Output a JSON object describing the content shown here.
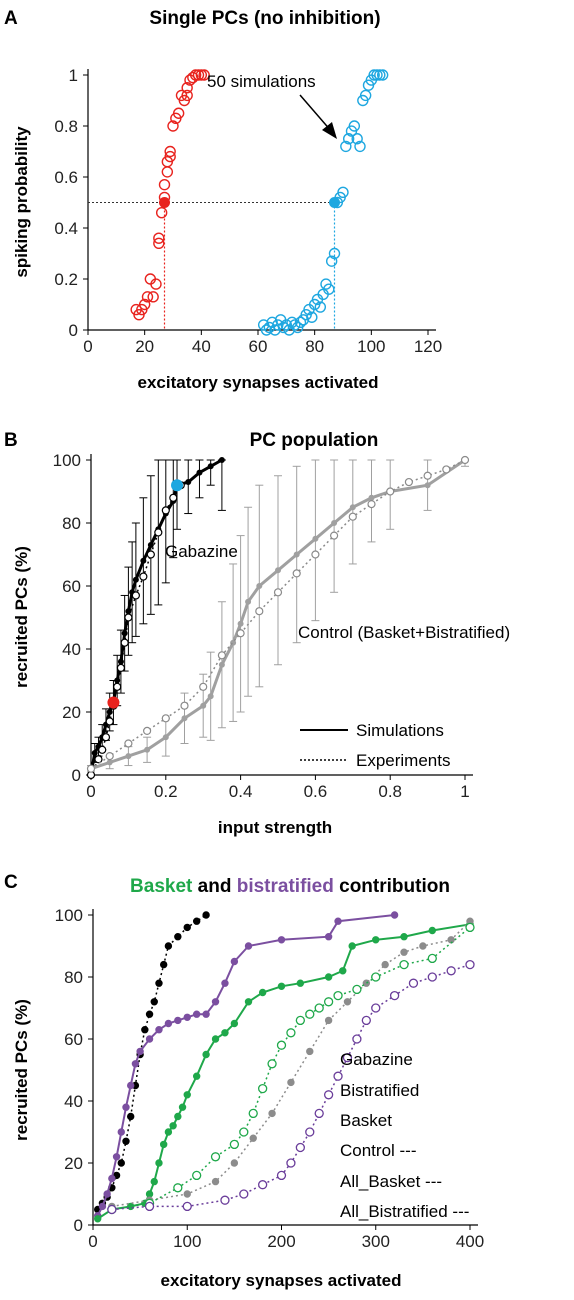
{
  "chart_data": [
    {
      "type": "scatter",
      "panel": "A",
      "title": "Single PCs (no inhibition)",
      "xlabel": "excitatory synapses activated",
      "ylabel": "spiking probability",
      "xlim": [
        0,
        120
      ],
      "ylim": [
        0,
        1
      ],
      "xticks": [
        "0",
        "20",
        "40",
        "60",
        "80",
        "100",
        "120"
      ],
      "yticks": [
        "0",
        "0.2",
        "0.4",
        "0.6",
        "0.8",
        "1"
      ],
      "annotation": "50 simulations",
      "series": [
        {
          "color": "#e8231e",
          "marker": "open-circle",
          "x": [
            17,
            18,
            19,
            20,
            21,
            22,
            23,
            24,
            25,
            25,
            26,
            27,
            27,
            28,
            28,
            29,
            29,
            30,
            31,
            32,
            33,
            34,
            35,
            35,
            36,
            37,
            38,
            39,
            40,
            41
          ],
          "y": [
            0.08,
            0.06,
            0.08,
            0.1,
            0.13,
            0.2,
            0.13,
            0.18,
            0.34,
            0.36,
            0.46,
            0.52,
            0.57,
            0.62,
            0.66,
            0.68,
            0.7,
            0.8,
            0.83,
            0.85,
            0.92,
            0.9,
            0.92,
            0.95,
            0.98,
            0.99,
            1.0,
            1.0,
            1.0,
            1.0
          ]
        },
        {
          "color": "#1ea7e0",
          "marker": "open-circle",
          "x": [
            62,
            63,
            64,
            65,
            66,
            67,
            68,
            69,
            70,
            71,
            72,
            73,
            74,
            75,
            76,
            77,
            78,
            79,
            80,
            81,
            82,
            83,
            84,
            85,
            86,
            87,
            88,
            89,
            90,
            91,
            92,
            93,
            94,
            95,
            96,
            97,
            98,
            99,
            100,
            101,
            102,
            103,
            104
          ],
          "y": [
            0.02,
            0.0,
            0.01,
            0.03,
            0.0,
            0.02,
            0.04,
            0.01,
            0.02,
            0.0,
            0.03,
            0.02,
            0.01,
            0.03,
            0.04,
            0.06,
            0.08,
            0.05,
            0.1,
            0.12,
            0.09,
            0.14,
            0.18,
            0.16,
            0.27,
            0.3,
            0.5,
            0.52,
            0.54,
            0.72,
            0.75,
            0.78,
            0.8,
            0.75,
            0.72,
            0.9,
            0.92,
            0.96,
            0.98,
            1.0,
            1.0,
            1.0,
            1.0
          ]
        }
      ],
      "highlight_points": [
        {
          "x": 27,
          "y": 0.5,
          "color": "#e8231e"
        },
        {
          "x": 87,
          "y": 0.5,
          "color": "#1ea7e0"
        }
      ],
      "reference_lines": {
        "y": 0.5,
        "x": [
          27,
          87
        ]
      }
    },
    {
      "type": "line",
      "panel": "B",
      "title": "PC population",
      "xlabel": "input strength",
      "ylabel": "recruited PCs (%)",
      "xlim": [
        0,
        1
      ],
      "ylim": [
        0,
        100
      ],
      "xticks": [
        "0",
        "0.2",
        "0.4",
        "0.6",
        "0.8",
        "1"
      ],
      "yticks": [
        "0",
        "20",
        "40",
        "60",
        "80",
        "100"
      ],
      "labels": [
        "Gabazine",
        "Control (Basket+Bistratified)"
      ],
      "legend": [
        "Simulations",
        "Experiments"
      ],
      "series": [
        {
          "style": "solid",
          "color": "#000000",
          "label": "Gabazine",
          "x": [
            0,
            0.01,
            0.02,
            0.03,
            0.04,
            0.05,
            0.06,
            0.07,
            0.08,
            0.09,
            0.1,
            0.11,
            0.12,
            0.14,
            0.16,
            0.18,
            0.2,
            0.22,
            0.23,
            0.26,
            0.29,
            0.32,
            0.35
          ],
          "y": [
            0,
            7,
            9,
            12,
            16,
            20,
            23,
            30,
            36,
            45,
            52,
            58,
            62,
            68,
            73,
            78,
            83,
            87,
            92,
            93,
            96,
            98,
            100
          ],
          "err": [
            0,
            3,
            3,
            4,
            5,
            6,
            7,
            8,
            10,
            12,
            14,
            16,
            18,
            20,
            22,
            24,
            22,
            18,
            14,
            10,
            8,
            6,
            16
          ]
        },
        {
          "style": "dotted",
          "color": "#000000",
          "label": "Gabazine",
          "x": [
            0,
            0.02,
            0.03,
            0.04,
            0.05,
            0.06,
            0.07,
            0.08,
            0.09,
            0.1,
            0.12,
            0.14,
            0.16,
            0.18,
            0.2,
            0.22,
            0.24
          ],
          "y": [
            0,
            5,
            8,
            12,
            17,
            22,
            28,
            34,
            42,
            50,
            57,
            63,
            70,
            77,
            84,
            88,
            92
          ]
        },
        {
          "style": "solid",
          "color": "#a0a0a0",
          "label": "Control (Basket+Bistratified)",
          "x": [
            0,
            0.05,
            0.1,
            0.15,
            0.2,
            0.25,
            0.3,
            0.32,
            0.35,
            0.38,
            0.4,
            0.42,
            0.45,
            0.5,
            0.55,
            0.6,
            0.65,
            0.7,
            0.75,
            0.8,
            0.9,
            1.0
          ],
          "y": [
            2,
            4,
            6,
            8,
            12,
            18,
            22,
            25,
            35,
            42,
            48,
            55,
            60,
            65,
            70,
            75,
            80,
            85,
            88,
            90,
            92,
            100
          ],
          "err": [
            1,
            2,
            3,
            4,
            6,
            8,
            10,
            14,
            20,
            25,
            28,
            30,
            32,
            30,
            28,
            26,
            22,
            18,
            14,
            12,
            8,
            2
          ]
        },
        {
          "style": "dotted",
          "color": "#8a8a8a",
          "label": "Control (Basket+Bistratified)",
          "x": [
            0,
            0.05,
            0.1,
            0.15,
            0.2,
            0.25,
            0.3,
            0.35,
            0.4,
            0.45,
            0.5,
            0.55,
            0.6,
            0.65,
            0.7,
            0.75,
            0.8,
            0.85,
            0.9,
            0.95,
            1.0
          ],
          "y": [
            2,
            6,
            10,
            14,
            18,
            22,
            28,
            38,
            45,
            52,
            58,
            64,
            70,
            76,
            82,
            86,
            90,
            93,
            95,
            97,
            100
          ]
        }
      ],
      "highlight_points": [
        {
          "x": 0.06,
          "y": 23,
          "color": "#e8231e"
        },
        {
          "x": 0.23,
          "y": 92,
          "color": "#1ea7e0"
        }
      ]
    },
    {
      "type": "line",
      "panel": "C",
      "title_parts": [
        "Basket",
        " and ",
        "bistratified",
        " contribution"
      ],
      "xlabel": "excitatory synapses activated",
      "ylabel": "recruited PCs (%)",
      "xlim": [
        0,
        400
      ],
      "ylim": [
        0,
        100
      ],
      "xticks": [
        "0",
        "100",
        "200",
        "300",
        "400"
      ],
      "yticks": [
        "0",
        "20",
        "40",
        "60",
        "80",
        "100"
      ],
      "legend": [
        "Gabazine",
        "Bistratified",
        "Basket",
        "Control ---",
        "All_Basket ---",
        "All_Bistratified ---"
      ],
      "series": [
        {
          "name": "Gabazine",
          "color": "#000000",
          "x": [
            5,
            10,
            15,
            20,
            25,
            30,
            35,
            40,
            45,
            50,
            55,
            60,
            65,
            70,
            75,
            80,
            90,
            100,
            110,
            120
          ],
          "y": [
            5,
            7,
            9,
            12,
            16,
            20,
            27,
            35,
            45,
            55,
            63,
            68,
            72,
            78,
            84,
            90,
            93,
            96,
            98,
            100
          ]
        },
        {
          "name": "Bistratified",
          "color": "#7b4fa0",
          "x": [
            5,
            10,
            15,
            20,
            25,
            30,
            35,
            40,
            45,
            50,
            60,
            70,
            80,
            90,
            100,
            110,
            120,
            130,
            140,
            150,
            165,
            200,
            250,
            260,
            320
          ],
          "y": [
            3,
            6,
            10,
            15,
            22,
            30,
            38,
            45,
            52,
            56,
            60,
            63,
            65,
            66,
            67,
            68,
            68,
            72,
            78,
            85,
            90,
            92,
            93,
            98,
            100
          ]
        },
        {
          "name": "Basket",
          "color": "#1fa84a",
          "x": [
            5,
            20,
            40,
            55,
            60,
            65,
            70,
            75,
            80,
            85,
            90,
            95,
            100,
            110,
            120,
            130,
            140,
            150,
            165,
            180,
            200,
            220,
            250,
            265,
            275,
            300,
            330,
            360,
            400
          ],
          "y": [
            2,
            5,
            6,
            7,
            10,
            14,
            20,
            26,
            30,
            32,
            35,
            38,
            42,
            48,
            55,
            60,
            62,
            65,
            72,
            75,
            77,
            78,
            80,
            82,
            90,
            92,
            93,
            95,
            97
          ]
        },
        {
          "name": "Control ---",
          "color": "#8c8c8c",
          "x": [
            20,
            60,
            100,
            130,
            150,
            170,
            190,
            210,
            230,
            250,
            270,
            290,
            310,
            330,
            350,
            380,
            400
          ],
          "y": [
            6,
            8,
            10,
            14,
            20,
            28,
            36,
            46,
            56,
            66,
            72,
            78,
            84,
            88,
            90,
            92,
            98
          ]
        },
        {
          "name": "All_Basket ---",
          "color": "#1fa84a",
          "x": [
            20,
            60,
            90,
            110,
            130,
            150,
            160,
            170,
            180,
            190,
            200,
            210,
            220,
            230,
            240,
            250,
            260,
            280,
            300,
            330,
            360,
            400
          ],
          "y": [
            5,
            7,
            12,
            16,
            22,
            26,
            30,
            36,
            44,
            52,
            58,
            62,
            66,
            68,
            70,
            72,
            74,
            76,
            80,
            84,
            86,
            96
          ]
        },
        {
          "name": "All_Bistratified ---",
          "color": "#6a3d9a",
          "x": [
            20,
            60,
            100,
            140,
            160,
            180,
            200,
            210,
            220,
            230,
            240,
            250,
            260,
            270,
            280,
            290,
            300,
            320,
            340,
            360,
            380,
            400
          ],
          "y": [
            5,
            6,
            6,
            8,
            10,
            13,
            16,
            20,
            25,
            30,
            36,
            42,
            48,
            54,
            60,
            66,
            70,
            74,
            78,
            80,
            82,
            84
          ]
        }
      ]
    }
  ]
}
